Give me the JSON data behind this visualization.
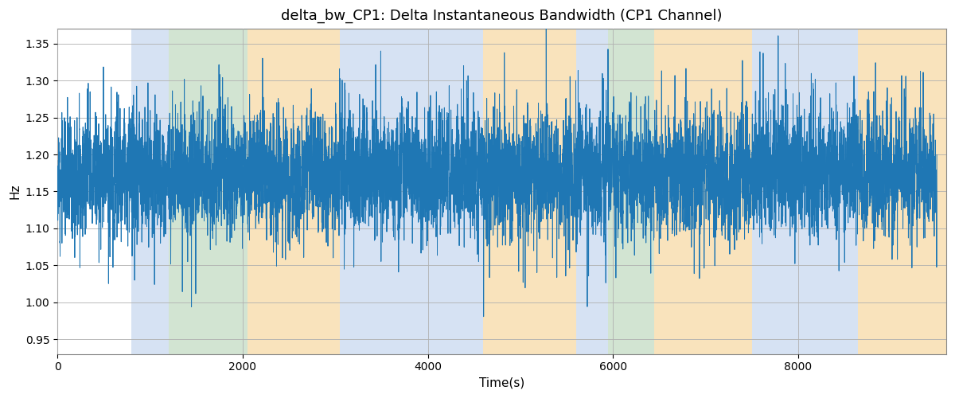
{
  "title": "delta_bw_CP1: Delta Instantaneous Bandwidth (CP1 Channel)",
  "xlabel": "Time(s)",
  "ylabel": "Hz",
  "xlim": [
    0,
    9600
  ],
  "ylim": [
    0.93,
    1.37
  ],
  "yticks": [
    0.95,
    1.0,
    1.05,
    1.1,
    1.15,
    1.2,
    1.25,
    1.3,
    1.35
  ],
  "xticks": [
    0,
    2000,
    4000,
    6000,
    8000
  ],
  "line_color": "#1f77b4",
  "line_width": 0.7,
  "signal_mean": 1.175,
  "signal_std": 0.038,
  "n_points": 9500,
  "seed": 12,
  "background_regions": [
    {
      "xmin": 800,
      "xmax": 1200,
      "color": "#aec6e8",
      "alpha": 0.5
    },
    {
      "xmin": 1200,
      "xmax": 2050,
      "color": "#8fbc8f",
      "alpha": 0.4
    },
    {
      "xmin": 2050,
      "xmax": 3050,
      "color": "#f5c87a",
      "alpha": 0.5
    },
    {
      "xmin": 3050,
      "xmax": 4600,
      "color": "#aec6e8",
      "alpha": 0.5
    },
    {
      "xmin": 4600,
      "xmax": 5600,
      "color": "#f5c87a",
      "alpha": 0.5
    },
    {
      "xmin": 5600,
      "xmax": 5950,
      "color": "#aec6e8",
      "alpha": 0.5
    },
    {
      "xmin": 5950,
      "xmax": 6450,
      "color": "#8fbc8f",
      "alpha": 0.4
    },
    {
      "xmin": 6450,
      "xmax": 7500,
      "color": "#f5c87a",
      "alpha": 0.5
    },
    {
      "xmin": 7500,
      "xmax": 8650,
      "color": "#aec6e8",
      "alpha": 0.5
    },
    {
      "xmin": 8650,
      "xmax": 9600,
      "color": "#f5c87a",
      "alpha": 0.5
    }
  ],
  "grid_color": "#b0b0b0",
  "grid_linewidth": 0.6,
  "figsize": [
    12,
    5
  ],
  "dpi": 100,
  "title_fontsize": 13
}
